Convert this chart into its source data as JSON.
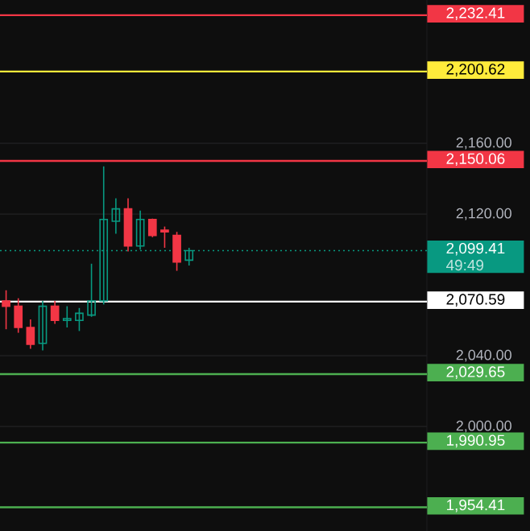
{
  "chart_data": {
    "type": "candlestick",
    "categories": [
      null,
      null,
      null,
      null,
      null,
      null,
      null,
      null,
      null,
      null,
      null,
      null,
      null,
      null,
      null,
      null,
      null,
      null,
      null,
      null,
      null,
      null,
      null,
      null,
      null,
      null,
      null,
      null,
      null,
      null,
      null,
      null,
      null,
      null,
      null
    ],
    "ohlc": [
      [
        2071,
        2077,
        2055,
        2068
      ],
      [
        2068,
        2072.5,
        2053,
        2056
      ],
      [
        2056,
        2060.5,
        2044,
        2046.5
      ],
      [
        2047,
        2071,
        2043,
        2068
      ],
      [
        2068,
        2071,
        2058,
        2060
      ],
      [
        2060,
        2068,
        2056,
        2061
      ],
      [
        2060,
        2067,
        2054,
        2064
      ],
      [
        2063,
        2092,
        2062,
        2071
      ],
      [
        2071,
        2147,
        2069,
        2117
      ],
      [
        2116,
        2129,
        2109,
        2123
      ],
      [
        2123,
        2129,
        2099,
        2102
      ],
      [
        2102,
        2122,
        2100,
        2117
      ],
      [
        2117,
        2117.5,
        2107,
        2108
      ],
      [
        2111,
        2113,
        2101,
        2110
      ],
      [
        2108,
        2110,
        2088,
        2093
      ],
      [
        2094,
        2101,
        2091,
        2099.4
      ],
      null,
      null,
      null,
      null,
      null,
      null,
      null,
      null,
      null,
      null,
      null,
      null,
      null,
      null,
      null,
      null,
      null,
      null,
      null
    ],
    "ylim": [
      1941,
      2241
    ],
    "yticks": [
      {
        "value": 2000,
        "label": "2,000.00"
      },
      {
        "value": 2040,
        "label": "2,040.00"
      },
      {
        "value": 2120,
        "label": "2,120.00"
      },
      {
        "value": 2160,
        "label": "2,160.00"
      }
    ],
    "grid": "y",
    "tick_labels": "y",
    "ref_lines": [
      {
        "axis": "y",
        "value": 2232.41,
        "label": "2,232.41",
        "color": "#f23645"
      },
      {
        "axis": "y",
        "value": 2200.62,
        "label": "2,200.62",
        "color": "#ffeb3b"
      },
      {
        "axis": "y",
        "value": 2150.06,
        "label": "2,150.06",
        "color": "#f23645"
      },
      {
        "axis": "y",
        "value": 2099.41,
        "label": "2,099.41",
        "color": "#089981",
        "line_style": "dotted"
      },
      {
        "axis": "y",
        "value": 2070.59,
        "label": "2,070.59",
        "color": "#ffffff"
      },
      {
        "axis": "y",
        "value": 2029.65,
        "label": "2,029.65",
        "color": "#4caf50"
      },
      {
        "axis": "y",
        "value": 1990.95,
        "label": "1,990.95",
        "color": "#4caf50"
      },
      {
        "axis": "y",
        "value": 1954.41,
        "label": "1,954.41",
        "color": "#4caf50"
      }
    ],
    "annotations": [
      "49:49"
    ]
  }
}
